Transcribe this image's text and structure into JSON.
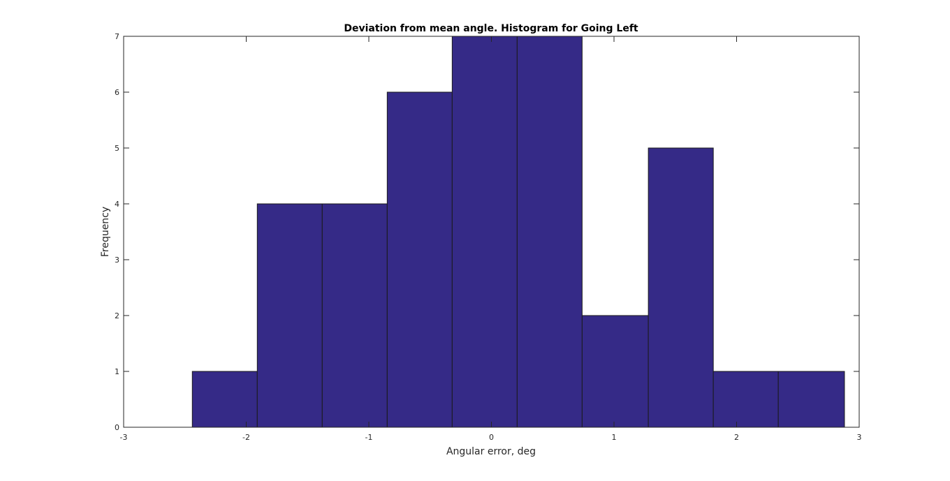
{
  "chart_data": {
    "type": "bar",
    "subtype": "histogram",
    "title": "Deviation from mean angle. Histogram for Going Left",
    "xlabel": "Angular error, deg",
    "ylabel": "Frequency",
    "xlim": [
      -3,
      3
    ],
    "ylim": [
      0,
      7
    ],
    "xticks": [
      "-3",
      "-2",
      "-1",
      "0",
      "1",
      "2",
      "3"
    ],
    "yticks": [
      "0",
      "1",
      "2",
      "3",
      "4",
      "5",
      "6",
      "7"
    ],
    "bins": [
      {
        "x0": -2.44,
        "x1": -1.91,
        "value": 1
      },
      {
        "x0": -1.91,
        "x1": -1.38,
        "value": 4
      },
      {
        "x0": -1.38,
        "x1": -0.85,
        "value": 4
      },
      {
        "x0": -0.85,
        "x1": -0.32,
        "value": 6
      },
      {
        "x0": -0.32,
        "x1": 0.21,
        "value": 7
      },
      {
        "x0": 0.21,
        "x1": 0.74,
        "value": 7
      },
      {
        "x0": 0.74,
        "x1": 1.28,
        "value": 2
      },
      {
        "x0": 1.28,
        "x1": 1.81,
        "value": 5
      },
      {
        "x0": 1.81,
        "x1": 2.34,
        "value": 1
      },
      {
        "x0": 2.34,
        "x1": 2.88,
        "value": 1
      }
    ],
    "bar_color": "#352a87",
    "edge_color": "#1a1a1a",
    "grid": false,
    "legend": "none"
  }
}
